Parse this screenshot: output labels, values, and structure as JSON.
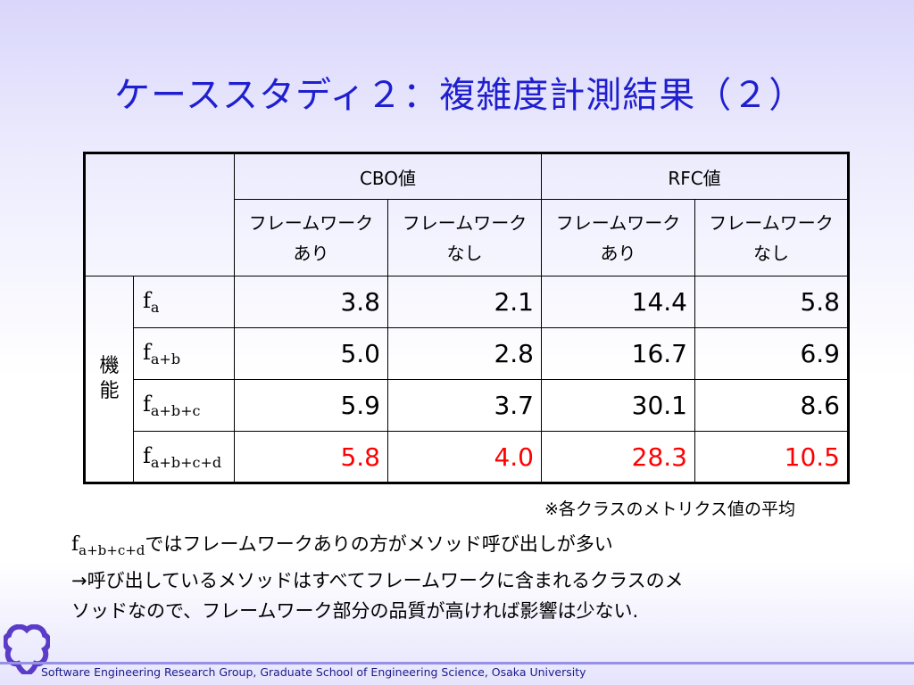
{
  "title": "ケーススタディ２：複雑度計測結果（２）",
  "table": {
    "groups": [
      "CBO値",
      "RFC値"
    ],
    "sub_headers": [
      {
        "line1": "フレームワーク",
        "line2": "あり"
      },
      {
        "line1": "フレームワーク",
        "line2": "なし"
      },
      {
        "line1": "フレームワーク",
        "line2": "あり"
      },
      {
        "line1": "フレームワーク",
        "line2": "なし"
      }
    ],
    "row_group_label": {
      "char1": "機",
      "char2": "能"
    },
    "rows": [
      {
        "base": "f",
        "sub": "a",
        "values": [
          "3.8",
          "2.1",
          "14.4",
          "5.8"
        ]
      },
      {
        "base": "f",
        "sub": "a+b",
        "values": [
          "5.0",
          "2.8",
          "16.7",
          "6.9"
        ]
      },
      {
        "base": "f",
        "sub": "a+b+c",
        "values": [
          "5.9",
          "3.7",
          "30.1",
          "8.6"
        ]
      },
      {
        "base": "f",
        "sub": "a+b+c+d",
        "values": [
          "5.8",
          "4.0",
          "28.3",
          "10.5"
        ]
      }
    ],
    "highlight_color": "#ff0000"
  },
  "note": "※各クラスのメトリクス値の平均",
  "body": {
    "f_base": "f",
    "f_sub": "a+b+c+d",
    "line1_rest": "ではフレームワークありの方がメソッド呼び出しが多い",
    "line2": "→呼び出しているメソッドはすべてフレームワークに含まれるクラスのメ",
    "line3": "ソッドなので、フレームワーク部分の品質が高ければ影響は少ない."
  },
  "footer": "Software Engineering Research Group, Graduate School of Engineering Science, Osaka University",
  "logo_icon": "university-logo-icon"
}
